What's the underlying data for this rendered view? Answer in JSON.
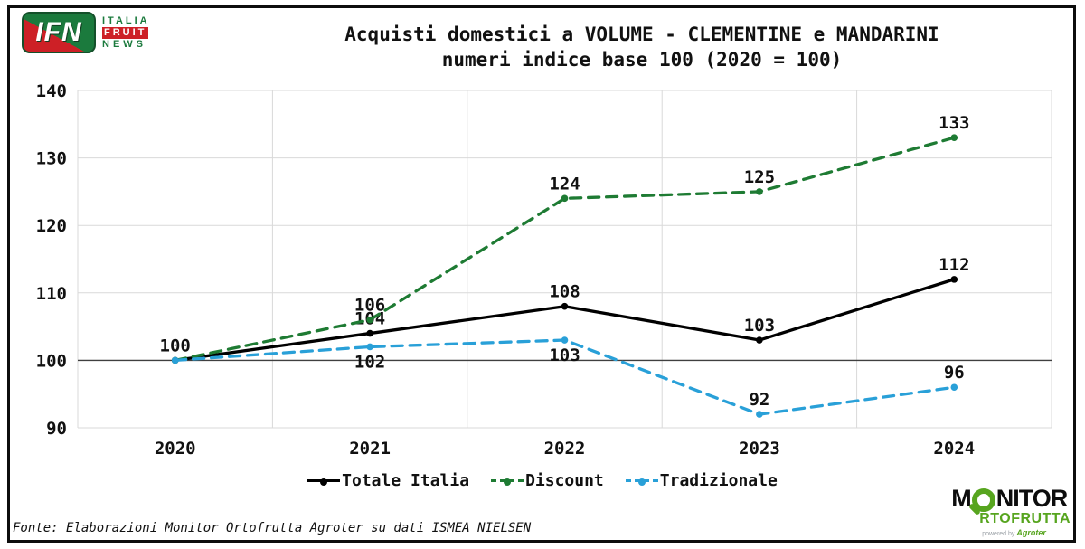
{
  "header": {
    "ifn_logo": {
      "acronym": "IFN",
      "word1": "ITALIA",
      "word2": "FRUIT",
      "word3": "NEWS",
      "green": "#1b7a3d",
      "red": "#cd2026"
    },
    "title_line1": "Acquisti domestici a VOLUME - CLEMENTINE e MANDARINI",
    "title_line2": "numeri indice base 100 (2020 = 100)"
  },
  "chart_data": {
    "type": "line",
    "title": "Acquisti domestici a VOLUME - CLEMENTINE e MANDARINI numeri indice base 100 (2020 = 100)",
    "categories": [
      "2020",
      "2021",
      "2022",
      "2023",
      "2024"
    ],
    "series": [
      {
        "name": "Totale Italia",
        "color": "#000000",
        "dash": null,
        "values": [
          100,
          104,
          108,
          103,
          112
        ],
        "labels": [
          "100",
          "104",
          "108",
          "103",
          "112"
        ],
        "label_positions": [
          "above",
          "above",
          "above",
          "above",
          "above"
        ]
      },
      {
        "name": "Discount",
        "color": "#1e7b33",
        "dash": "12 8",
        "values": [
          100,
          106,
          124,
          125,
          133
        ],
        "labels": [
          null,
          "106",
          "124",
          "125",
          "133"
        ],
        "label_positions": [
          null,
          "above",
          "above",
          "above",
          "above"
        ]
      },
      {
        "name": "Tradizionale",
        "color": "#29a0d8",
        "dash": "12 8",
        "values": [
          100,
          102,
          103,
          92,
          96
        ],
        "labels": [
          null,
          "102",
          "103",
          "92",
          "96"
        ],
        "label_positions": [
          null,
          "below",
          "below",
          "above",
          "above"
        ]
      }
    ],
    "ylim": [
      90,
      140
    ],
    "ytick_step": 10,
    "baseline_value": 100,
    "grid": true,
    "gridline_color": "#d9d9d9",
    "baseline_color": "#3f3f3f",
    "legend_position": "bottom"
  },
  "legend": {
    "items": [
      {
        "label": "Totale Italia"
      },
      {
        "label": "Discount"
      },
      {
        "label": "Tradizionale"
      }
    ]
  },
  "footer": {
    "source": "Fonte: Elaborazioni Monitor Ortofrutta Agroter su dati ISMEA NIELSEN"
  },
  "monitor_logo": {
    "line1_prefix": "M",
    "line1_suffix": "NITOR",
    "line2": "RTOFRUTTA",
    "powered_by": "powered by",
    "brand": "Agroter",
    "green": "#57a51f"
  }
}
